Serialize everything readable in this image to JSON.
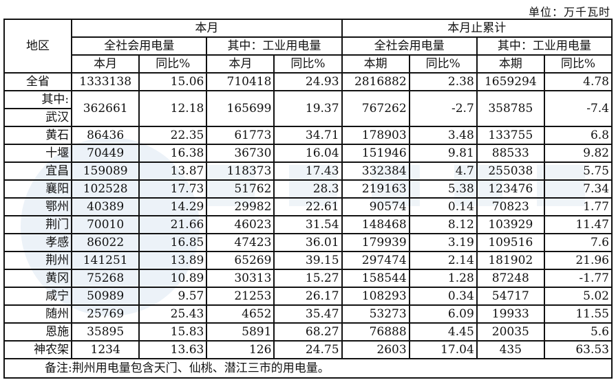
{
  "unit": "单位：万千瓦时",
  "header": {
    "region": "地区",
    "month": "本月",
    "cumulative": "本月止累计",
    "total": "全社会用电量",
    "industrial": "其中：工业用电量",
    "this_month": "本月",
    "this_period": "本期",
    "yoy": "同比%"
  },
  "split_row": {
    "label_top": "其中:",
    "label_bottom": "武汉",
    "values": [
      "362661",
      "12.18",
      "165699",
      "19.37",
      "767262",
      "-2.7",
      "358785",
      "-7.4"
    ]
  },
  "rows": [
    {
      "region": "全省",
      "values": [
        "1333138",
        "15.06",
        "710418",
        "24.93",
        "2816882",
        "2.38",
        "1659294",
        "4.78"
      ]
    },
    {
      "region": "黄石",
      "values": [
        "86436",
        "22.35",
        "61773",
        "34.71",
        "178903",
        "3.48",
        "133755",
        "6.8"
      ]
    },
    {
      "region": "十堰",
      "values": [
        "70449",
        "16.38",
        "36730",
        "16.04",
        "151946",
        "9.81",
        "88533",
        "9.82"
      ]
    },
    {
      "region": "宜昌",
      "values": [
        "159089",
        "13.87",
        "118373",
        "17.43",
        "332384",
        "4.7",
        "255038",
        "5.75"
      ]
    },
    {
      "region": "襄阳",
      "values": [
        "102528",
        "17.73",
        "51762",
        "28.3",
        "219163",
        "5.38",
        "123476",
        "7.34"
      ]
    },
    {
      "region": "鄂州",
      "values": [
        "40389",
        "14.29",
        "29982",
        "22.61",
        "90574",
        "0.14",
        "70823",
        "1.77"
      ]
    },
    {
      "region": "荆门",
      "values": [
        "70010",
        "21.66",
        "46023",
        "31.54",
        "148468",
        "8.12",
        "103929",
        "11.47"
      ]
    },
    {
      "region": "孝感",
      "values": [
        "86022",
        "16.85",
        "47423",
        "36.01",
        "179939",
        "3.19",
        "109516",
        "7.6"
      ]
    },
    {
      "region": "荆州",
      "values": [
        "141251",
        "13.89",
        "65269",
        "39.15",
        "297474",
        "2.14",
        "181902",
        "21.96"
      ]
    },
    {
      "region": "黄冈",
      "values": [
        "75268",
        "10.89",
        "30313",
        "15.27",
        "158544",
        "1.28",
        "87248",
        "-1.77"
      ]
    },
    {
      "region": "咸宁",
      "values": [
        "50989",
        "9.57",
        "21253",
        "26.17",
        "108293",
        "0.34",
        "54717",
        "5.02"
      ]
    },
    {
      "region": "随州",
      "values": [
        "25769",
        "25.43",
        "4652",
        "35.47",
        "53273",
        "6.09",
        "19933",
        "11.55"
      ]
    },
    {
      "region": "恩施",
      "values": [
        "35895",
        "15.83",
        "5891",
        "68.27",
        "76888",
        "4.45",
        "20035",
        "5.6"
      ]
    },
    {
      "region": "神农架",
      "values": [
        "1234",
        "13.63",
        "126",
        "24.75",
        "2603",
        "17.04",
        "435",
        "63.53"
      ]
    }
  ],
  "note": "备注:荆州用电量包含天门、仙桃、潜江三市的用电量。"
}
